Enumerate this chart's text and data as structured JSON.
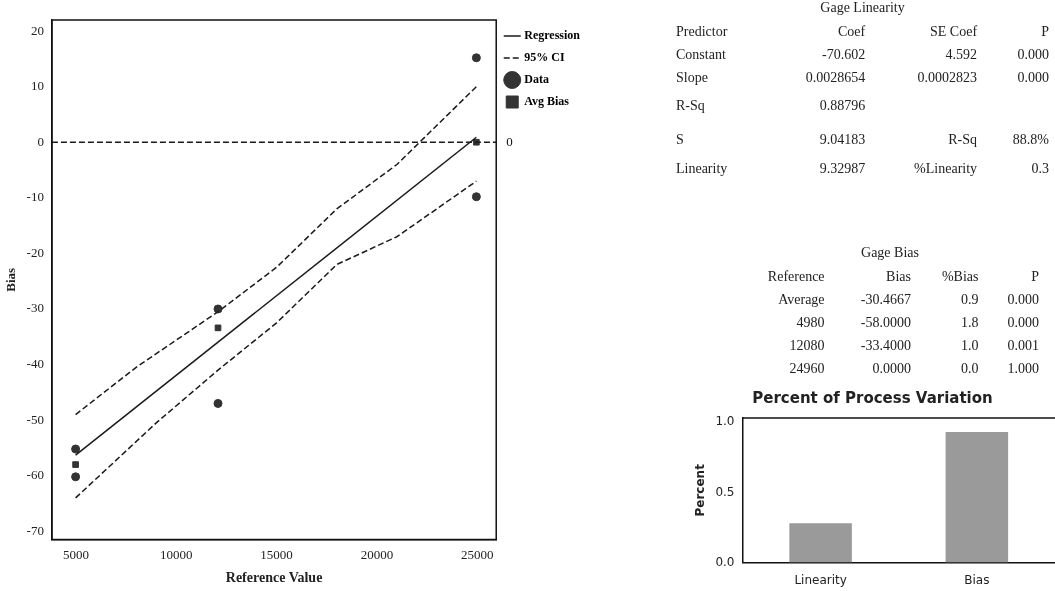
{
  "chart_data": [
    {
      "type": "scatter",
      "xlabel": "Reference Value",
      "ylabel": "Bias",
      "xlim": [
        3800,
        25950
      ],
      "ylim": [
        -71.5,
        22
      ],
      "xticks": [
        5000,
        10000,
        15000,
        20000,
        25000
      ],
      "yticks": [
        -70,
        -60,
        -50,
        -40,
        -30,
        -20,
        -10,
        0,
        10,
        20
      ],
      "grid": false,
      "legend": "top right",
      "ref_lines": [
        {
          "axis": "y",
          "value": 0,
          "label": "0",
          "line_style": "dashed",
          "color": "#1a1a1a"
        }
      ],
      "series": [
        {
          "name": "Regression",
          "type": "line",
          "color": "#1a1a1a",
          "x": [
            4980,
            24960
          ],
          "values": [
            -56.3,
            0.9
          ],
          "line_style": "solid",
          "marker": "none"
        },
        {
          "name": "95% CI",
          "type": "line",
          "color": "#1a1a1a",
          "x": [
            4980,
            8000,
            12080,
            15000,
            18000,
            21000,
            24960
          ],
          "values": [
            -49,
            -40.5,
            -30.5,
            -22.5,
            -12,
            -4,
            10
          ],
          "line_style": "dashed",
          "marker": "none"
        },
        {
          "type": "line",
          "color": "#1a1a1a",
          "x": [
            4980,
            9000,
            12080,
            15000,
            18000,
            21000,
            24960
          ],
          "values": [
            -64,
            -50.5,
            -41,
            -32.5,
            -22,
            -17,
            -7
          ],
          "line_style": "dashed",
          "marker": "none"
        },
        {
          "name": "Data",
          "type": "scatter",
          "color": "#333333",
          "x": [
            4980,
            4980,
            12080,
            12080,
            24960,
            24960
          ],
          "values": [
            -55.2,
            -60.2,
            -30,
            -47,
            15.2,
            -9.8
          ],
          "marker": "circle"
        },
        {
          "name": "Avg Bias",
          "type": "scatter",
          "color": "#333333",
          "x": [
            4980,
            12080,
            24960
          ],
          "values": [
            -58,
            -33.4,
            0
          ],
          "marker": "square"
        }
      ]
    },
    {
      "type": "other",
      "title": "Gage Linearity",
      "annotations": [
        "Predictor",
        "Coef",
        "SE Coef",
        "P",
        "Constant",
        "-70.602",
        "4.592",
        "0.000",
        "Slope",
        "0.0028654",
        "0.0002823",
        "0.000",
        "R-Sq",
        "0.88796",
        "S",
        "9.04183",
        "R-Sq",
        "88.8%",
        "Linearity",
        "9.32987",
        "%Linearity",
        "0.3"
      ]
    },
    {
      "type": "other",
      "title": "Gage Bias",
      "annotations": [
        "Reference",
        "Bias",
        "%Bias",
        "P",
        "Average",
        "-30.4667",
        "0.9",
        "0.000",
        "4980",
        "-58.0000",
        "1.8",
        "0.000",
        "12080",
        "-33.4000",
        "1.0",
        "0.001",
        "24960",
        "0.0000",
        "0.0",
        "1.000"
      ]
    },
    {
      "type": "bar",
      "title": "Percent of Process Variation",
      "ylabel": "Percent",
      "categories": [
        "Linearity",
        "Bias"
      ],
      "values": [
        0.28,
        0.93
      ],
      "colors": [
        "#9a9a9a",
        "#9a9a9a"
      ],
      "ylim": [
        0,
        1.03
      ],
      "yticks": [
        {
          "value": 0,
          "label": "0.0"
        },
        {
          "value": 0.5,
          "label": "0.5"
        },
        {
          "value": 1,
          "label": "1.0"
        }
      ],
      "grid": false,
      "legend": false
    }
  ]
}
